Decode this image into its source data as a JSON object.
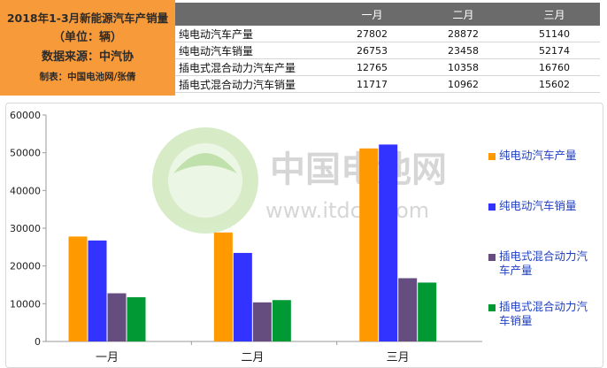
{
  "info": {
    "title": "2018年1-3月新能源汽车产销量",
    "unit": "（单位：辆）",
    "source": "数据来源：中汽协",
    "maker": "制表：中国电池网/张倩"
  },
  "table": {
    "headers": [
      "",
      "一月",
      "二月",
      "三月"
    ],
    "rows": [
      {
        "label": "纯电动汽车产量",
        "values": [
          "27802",
          "28872",
          "51140"
        ]
      },
      {
        "label": "纯电动汽车销量",
        "values": [
          "26753",
          "23458",
          "52174"
        ]
      },
      {
        "label": "插电式混合动力汽车产量",
        "values": [
          "12765",
          "10358",
          "16760"
        ]
      },
      {
        "label": "插电式混合动力汽车销量",
        "values": [
          "11717",
          "10962",
          "15602"
        ]
      }
    ]
  },
  "watermark": {
    "cn": "中国电池网",
    "url": "www.itdcw.com"
  },
  "colors": {
    "series": [
      "#ff9900",
      "#3333ff",
      "#664d80",
      "#009933"
    ],
    "infobox": "#f79a3a",
    "header": "#6b6b6b"
  },
  "chart_data": {
    "type": "bar",
    "categories": [
      "一月",
      "二月",
      "三月"
    ],
    "series": [
      {
        "name": "纯电动汽车产量",
        "values": [
          27802,
          28872,
          51140
        ]
      },
      {
        "name": "纯电动汽车销量",
        "values": [
          26753,
          23458,
          52174
        ]
      },
      {
        "name": "插电式混合动力汽车产量",
        "values": [
          12765,
          10358,
          16760
        ]
      },
      {
        "name": "插电式混合动力汽车销量",
        "values": [
          11717,
          10962,
          15602
        ]
      }
    ],
    "ylim": [
      0,
      60000
    ],
    "yticks": [
      "0",
      "10000",
      "20000",
      "30000",
      "40000",
      "50000",
      "60000"
    ],
    "grid": false,
    "legend": "right"
  }
}
